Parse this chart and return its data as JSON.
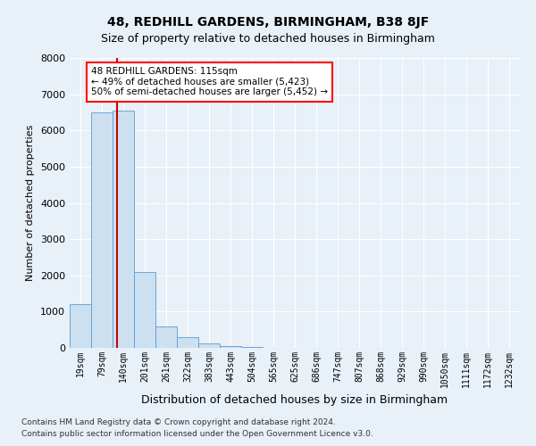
{
  "title": "48, REDHILL GARDENS, BIRMINGHAM, B38 8JF",
  "subtitle": "Size of property relative to detached houses in Birmingham",
  "xlabel": "Distribution of detached houses by size in Birmingham",
  "ylabel": "Number of detached properties",
  "footer_line1": "Contains HM Land Registry data © Crown copyright and database right 2024.",
  "footer_line2": "Contains public sector information licensed under the Open Government Licence v3.0.",
  "annotation_line0": "48 REDHILL GARDENS: 115sqm",
  "annotation_line1": "← 49% of detached houses are smaller (5,423)",
  "annotation_line2": "50% of semi-detached houses are larger (5,452) →",
  "bar_color": "#cce0f0",
  "bar_edge_color": "#5b9bd5",
  "highlight_line_color": "#cc0000",
  "red_line_x": 1.72,
  "categories": [
    "19sqm",
    "79sqm",
    "140sqm",
    "201sqm",
    "261sqm",
    "322sqm",
    "383sqm",
    "443sqm",
    "504sqm",
    "565sqm",
    "625sqm",
    "686sqm",
    "747sqm",
    "807sqm",
    "868sqm",
    "929sqm",
    "990sqm",
    "1050sqm",
    "1111sqm",
    "1172sqm",
    "1232sqm"
  ],
  "values": [
    1200,
    6500,
    6550,
    2100,
    580,
    300,
    130,
    60,
    30,
    10,
    5,
    2,
    1,
    0,
    0,
    0,
    0,
    0,
    0,
    0,
    0
  ],
  "ylim": [
    0,
    8000
  ],
  "yticks": [
    0,
    1000,
    2000,
    3000,
    4000,
    5000,
    6000,
    7000,
    8000
  ],
  "bg_color": "#e8f0f8",
  "grid_color": "#ffffff",
  "fig_width": 6.0,
  "fig_height": 5.0,
  "dpi": 100,
  "title_fontsize": 10,
  "subtitle_fontsize": 9,
  "ylabel_fontsize": 8,
  "xlabel_fontsize": 9,
  "ytick_fontsize": 8,
  "xtick_fontsize": 7,
  "annot_fontsize": 7.5,
  "footer_fontsize": 6.5
}
